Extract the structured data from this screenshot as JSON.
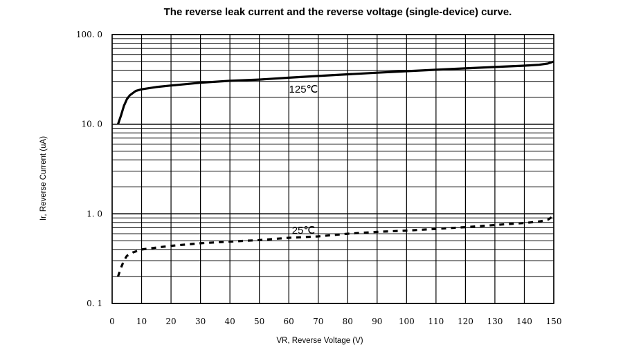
{
  "chart_data": {
    "type": "line",
    "title": "The reverse leak current and the reverse voltage (single-device) curve.",
    "xlabel": "VR, Reverse Voltage (V)",
    "ylabel": "Ir, Reverse Current (uA)",
    "x_ticks": [
      "0",
      "10",
      "20",
      "30",
      "40",
      "50",
      "60",
      "70",
      "80",
      "90",
      "100",
      "110",
      "120",
      "130",
      "140",
      "150"
    ],
    "y_ticks": [
      {
        "value": 0.1,
        "label": "0. 1"
      },
      {
        "value": 1,
        "label": "1. 0"
      },
      {
        "value": 10,
        "label": "10. 0"
      },
      {
        "value": 100,
        "label": "100. 0"
      }
    ],
    "xlim": [
      0,
      150
    ],
    "ylim": [
      0.1,
      100
    ],
    "y_scale": "log",
    "grid": true,
    "series": [
      {
        "name": "125℃",
        "style": "solid",
        "color": "#000000",
        "x": [
          2,
          3,
          4,
          5,
          6,
          8,
          10,
          15,
          20,
          30,
          40,
          50,
          60,
          70,
          80,
          90,
          100,
          110,
          120,
          130,
          140,
          145,
          148,
          150
        ],
        "y": [
          10,
          12.5,
          16,
          19,
          21,
          23.5,
          24.5,
          26,
          27,
          29,
          30.5,
          31.5,
          33,
          34.5,
          36,
          37.5,
          39,
          40.5,
          42,
          43.5,
          45,
          46,
          47.5,
          50
        ]
      },
      {
        "name": "25℃",
        "style": "dashed",
        "color": "#000000",
        "x": [
          2,
          3,
          4,
          5,
          7,
          10,
          15,
          20,
          30,
          40,
          50,
          60,
          70,
          80,
          90,
          100,
          110,
          120,
          130,
          140,
          145,
          148,
          150
        ],
        "y": [
          0.2,
          0.25,
          0.3,
          0.34,
          0.37,
          0.4,
          0.42,
          0.44,
          0.47,
          0.49,
          0.51,
          0.54,
          0.56,
          0.6,
          0.63,
          0.65,
          0.68,
          0.71,
          0.75,
          0.79,
          0.82,
          0.86,
          0.95
        ]
      }
    ]
  }
}
